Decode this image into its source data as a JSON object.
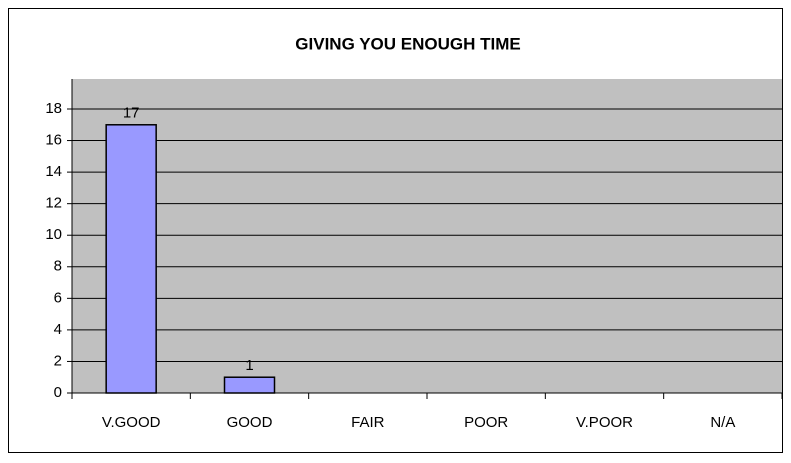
{
  "chart_data": {
    "type": "bar",
    "title": "GIVING YOU ENOUGH TIME",
    "categories": [
      "V.GOOD",
      "GOOD",
      "FAIR",
      "POOR",
      "V.POOR",
      "N/A"
    ],
    "values": [
      17,
      1,
      0,
      0,
      0,
      0
    ],
    "color": "#9999ff",
    "ylim": [
      0,
      18
    ],
    "yticks": [
      0,
      2,
      4,
      6,
      8,
      10,
      12,
      14,
      16,
      18
    ],
    "grid": true
  }
}
